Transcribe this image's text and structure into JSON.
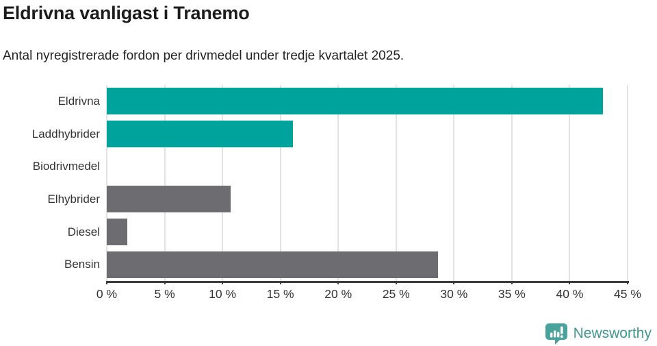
{
  "header": {
    "title": "Eldrivna vanligast i Tranemo",
    "subtitle": "Antal nyregistrerade fordon per drivmedel under tredje kvartalet 2025."
  },
  "chart_data": {
    "type": "bar",
    "orientation": "horizontal",
    "title": "Eldrivna vanligast i Tranemo",
    "subtitle": "Antal nyregistrerade fordon per drivmedel under tredje kvartalet 2025.",
    "categories": [
      "Eldrivna",
      "Laddhybrider",
      "Biodrivmedel",
      "Elhybrider",
      "Diesel",
      "Bensin"
    ],
    "values": [
      42.9,
      16.1,
      0,
      10.7,
      1.8,
      28.6
    ],
    "unit": "%",
    "xlim": [
      0,
      45
    ],
    "xticks": [
      0,
      5,
      10,
      15,
      20,
      25,
      30,
      35,
      40,
      45
    ],
    "xtick_suffix": " %",
    "grid": true,
    "legend": "none",
    "bar_colors": [
      "#00a39c",
      "#00a39c",
      "#6d6c71",
      "#6d6c71",
      "#6d6c71",
      "#6d6c71"
    ],
    "colors": {
      "accent_teal": "#00a39c",
      "neutral_gray": "#6d6c71",
      "gridline": "#e3e3e3",
      "axis": "#3b3b3b",
      "tick_label": "#333333"
    }
  },
  "footer": {
    "brand": "Newsworthy",
    "brand_color": "#3f968f",
    "icon": "newsworthy-bar-chart-bubble-icon",
    "icon_color": "#4aa29d"
  }
}
